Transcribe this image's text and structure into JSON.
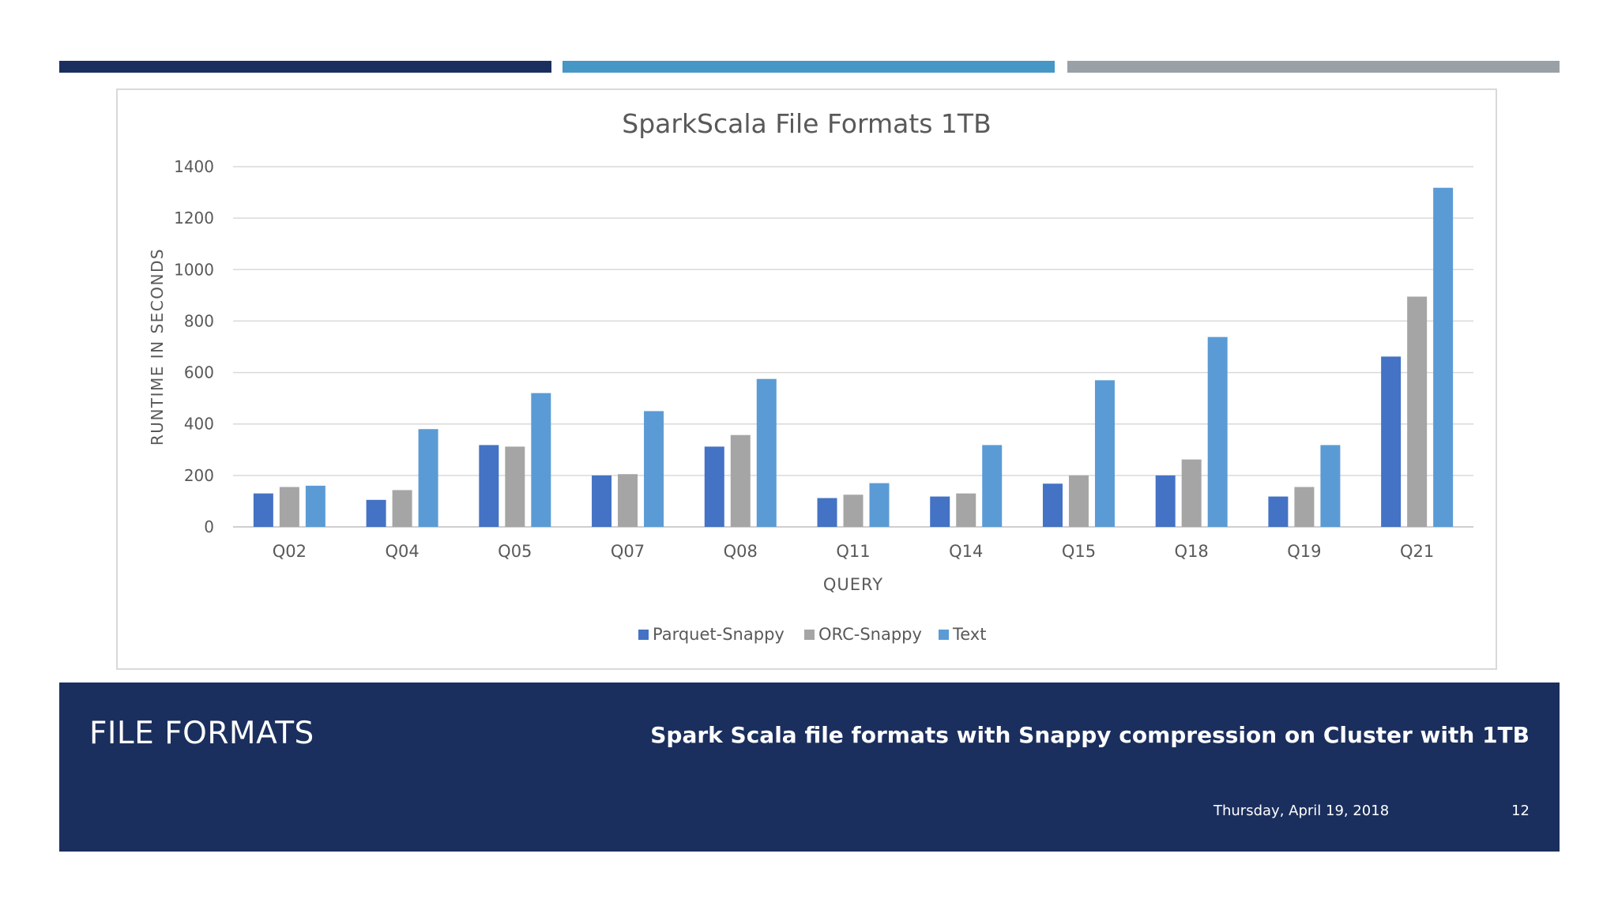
{
  "colors": {
    "accent_dark": "#1b2f5e",
    "accent_mid": "#4696c6",
    "accent_gray": "#9aa1a6",
    "footer_bg": "#1b2f5e",
    "parquet": "#4472c4",
    "orc": "#a5a5a5",
    "text": "#5b9bd5"
  },
  "footer": {
    "title": "FILE FORMATS",
    "subtitle": "Spark Scala file formats with Snappy compression on Cluster with 1TB",
    "date": "Thursday, April 19, 2018",
    "page": "12"
  },
  "chart_data": {
    "type": "bar",
    "title": "SparkScala File Formats 1TB",
    "xlabel": "QUERY",
    "ylabel": "RUNTIME IN SECONDS",
    "ylim": [
      0,
      1400
    ],
    "yticks": [
      0,
      200,
      400,
      600,
      800,
      1000,
      1200,
      1400
    ],
    "grid": true,
    "legend_position": "bottom",
    "categories": [
      "Q02",
      "Q04",
      "Q05",
      "Q07",
      "Q08",
      "Q11",
      "Q14",
      "Q15",
      "Q18",
      "Q19",
      "Q21"
    ],
    "series": [
      {
        "name": "Parquet-Snappy",
        "color": "#4472c4",
        "values": [
          130,
          105,
          318,
          200,
          312,
          112,
          118,
          168,
          200,
          118,
          662
        ]
      },
      {
        "name": "ORC-Snappy",
        "color": "#a5a5a5",
        "values": [
          155,
          143,
          312,
          205,
          357,
          125,
          130,
          200,
          262,
          155,
          895
        ]
      },
      {
        "name": "Text",
        "color": "#5b9bd5",
        "values": [
          160,
          380,
          520,
          450,
          575,
          170,
          318,
          570,
          738,
          318,
          1318
        ]
      }
    ]
  }
}
